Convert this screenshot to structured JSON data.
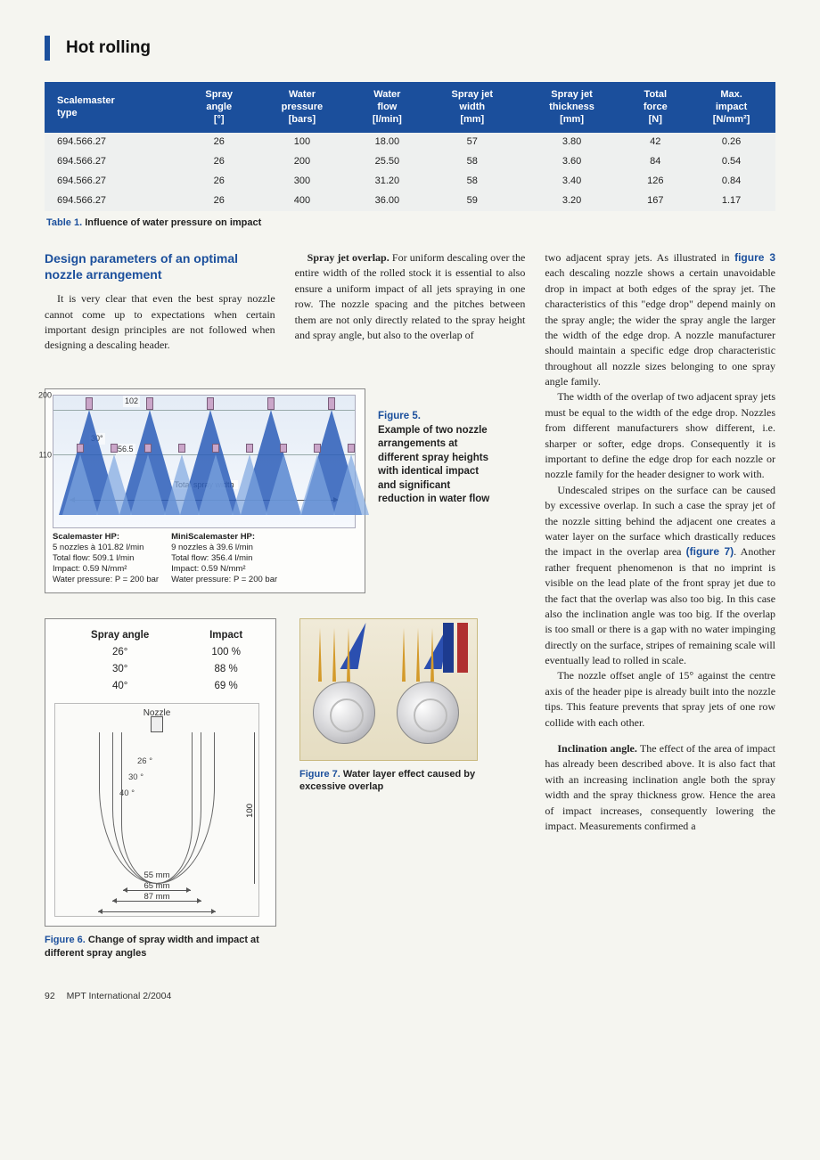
{
  "page": {
    "section_title": "Hot rolling",
    "footer_page": "92",
    "footer_pub": "MPT International 2/2004"
  },
  "table1": {
    "caption_label": "Table 1.",
    "caption_text": "Influence of water pressure on impact",
    "header_bg": "#1b4f9c",
    "columns": [
      "Scalemaster type",
      "Spray angle [°]",
      "Water pressure [bars]",
      "Water flow [l/min]",
      "Spray jet width [mm]",
      "Spray jet thickness [mm]",
      "Total force [N]",
      "Max. impact [N/mm²]"
    ],
    "rows": [
      [
        "694.566.27",
        "26",
        "100",
        "18.00",
        "57",
        "3.80",
        "42",
        "0.26"
      ],
      [
        "694.566.27",
        "26",
        "200",
        "25.50",
        "58",
        "3.60",
        "84",
        "0.54"
      ],
      [
        "694.566.27",
        "26",
        "300",
        "31.20",
        "58",
        "3.40",
        "126",
        "0.84"
      ],
      [
        "694.566.27",
        "26",
        "400",
        "36.00",
        "59",
        "3.20",
        "167",
        "1.17"
      ]
    ]
  },
  "body": {
    "heading": "Design parameters of an optimal nozzle arrangement",
    "p_left": "It is very clear that even the best spray nozzle cannot come up to expectations when certain important design principles are not followed when designing a descaling header.",
    "p_mid_label": "Spray jet overlap.",
    "p_mid": " For uniform descaling over the entire width of the rolled stock it is essential to also ensure a uniform impact of all jets spraying in one row. The nozzle spacing and the pitches between them are not only directly related to the spray height and spray angle, but also to the overlap of",
    "p_r1a": "two adjacent spray jets. As illustrated in ",
    "p_r1_figref": "figure 3",
    "p_r1b": " each descaling nozzle shows a certain unavoidable drop in impact at both edges of the spray jet. The characteristics of this \"edge drop\" depend mainly on the spray angle; the wider the spray angle the larger the width of the edge drop. A nozzle manufacturer should maintain a specific edge drop characteristic throughout all nozzle sizes belonging to one spray angle family.",
    "p_r2": "The width of the overlap of two adjacent spray jets must be equal to the width of the edge drop. Nozzles from different manufacturers show different, i.e. sharper or softer, edge drops. Consequently it is important to define the edge drop for each nozzle or nozzle family for the header designer to work with.",
    "p_r3a": "Undescaled stripes on the surface can be caused by excessive overlap. In such a case the spray jet of the nozzle sitting behind the adjacent one creates a water layer on the surface which drastically reduces the impact in the overlap area ",
    "p_r3_figref": "(figure 7)",
    "p_r3b": ". Another rather frequent phenomenon is that no imprint is visible on the lead plate of the front spray jet due to the fact that the overlap was also too big. In this case also the inclination angle was too big. If the overlap is too small or there is a gap with no water impinging directly on the surface, stripes of remaining scale will eventually lead to rolled in scale.",
    "p_r4": "The nozzle offset angle of 15° against the centre axis of the header pipe is already built into the nozzle tips. This feature prevents that spray jets of one row collide with each other.",
    "p_r5_label": "Inclination angle.",
    "p_r5": " The effect of the area of impact has already been described above. It is also fact that with an increasing inclination angle both the spray width and the spray thickness grow. Hence the area of impact increases, consequently lowering the impact. Measurements confirmed a"
  },
  "fig5": {
    "side_label": "Figure 5.",
    "side_text": "Example of two nozzle arrangements at different spray heights with identical impact and significant reduction in water flow",
    "dim_top": "102",
    "dim_angle": "30°",
    "dim_pitch": "56.5",
    "y_200": "200",
    "y_110": "110",
    "total_width_label": "Total spray width",
    "left_title": "Scalemaster HP:",
    "left_l1": "5 nozzles à 101.82 l/min",
    "left_l2": "Total flow:  509.1 l/min",
    "left_l3": "Impact: 0.59 N/mm²",
    "left_l4": "Water pressure: P = 200 bar",
    "right_title": "MiniScalemaster HP:",
    "right_l1": "9 nozzles à 39.6 l/min",
    "right_l2": "Total flow: 356.4 l/min",
    "right_l3": "Impact: 0.59 N/mm²",
    "right_l4": "Water pressure: P = 200 bar",
    "cone_color_big": "#2b5db8",
    "cone_color_small": "#7fa7e0"
  },
  "fig6": {
    "cap_label": "Figure 6.",
    "cap_text": "Change of spray width and impact at different spray angles",
    "columns": [
      "Spray angle",
      "Impact"
    ],
    "rows": [
      [
        "26°",
        "100 %"
      ],
      [
        "30°",
        "88 %"
      ],
      [
        "40°",
        "69 %"
      ]
    ],
    "nozzle_label": "Nozzle",
    "fan_labels": [
      "26 °",
      "30 °",
      "40 °"
    ],
    "dim_55": "55 mm",
    "dim_65": "65 mm",
    "dim_87": "87 mm",
    "dim_100": "100"
  },
  "fig7": {
    "cap_label": "Figure 7.",
    "cap_text": "Water layer effect caused by excessive overlap"
  }
}
